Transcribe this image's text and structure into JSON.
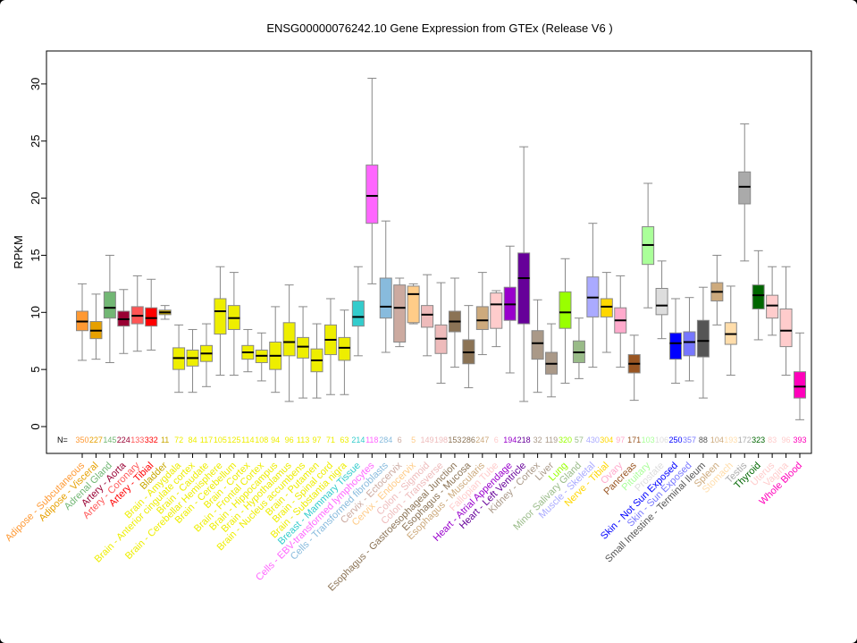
{
  "chart_data": {
    "type": "boxplot",
    "title": "ENSG00000076242.10 Gene Expression from GTEx (Release  V6 )",
    "ylabel": "RPKM",
    "ylim": [
      -1,
      33
    ],
    "yticks": [
      0,
      5,
      10,
      15,
      20,
      25,
      30
    ],
    "n_label": "N=",
    "series": [
      {
        "name": "Adipose - Subcutaneous",
        "n": "350",
        "color": "#FF9933",
        "stats": [
          5.8,
          8.4,
          9.2,
          10.1,
          12.5
        ]
      },
      {
        "name": "Adipose - Visceral",
        "n": "227",
        "color": "#E6A000",
        "stats": [
          5.9,
          7.7,
          8.4,
          9.2,
          11.6
        ]
      },
      {
        "name": "Adrenal Gland",
        "n": "145",
        "color": "#72B774",
        "stats": [
          5.6,
          9.5,
          10.4,
          11.8,
          15.0
        ]
      },
      {
        "name": "Artery - Aorta",
        "n": "224",
        "color": "#990033",
        "stats": [
          6.4,
          8.8,
          9.4,
          10.1,
          12.0
        ]
      },
      {
        "name": "Artery - Coronary",
        "n": "133",
        "color": "#FF5555",
        "stats": [
          6.6,
          9.0,
          9.7,
          10.5,
          13.2
        ]
      },
      {
        "name": "Artery - Tibial",
        "n": "332",
        "color": "#FF0000",
        "stats": [
          6.7,
          8.8,
          9.5,
          10.4,
          12.9
        ]
      },
      {
        "name": "Bladder",
        "n": "11",
        "color": "#C8A800",
        "stats": [
          9.4,
          9.8,
          10.0,
          10.2,
          10.6
        ]
      },
      {
        "name": "Brain - Amygdala",
        "n": "72",
        "color": "#EEEE00",
        "stats": [
          3.0,
          5.0,
          6.0,
          6.9,
          8.9
        ]
      },
      {
        "name": "Brain - Anterior cingulate cortex",
        "n": "84",
        "color": "#EEEE00",
        "stats": [
          3.0,
          5.3,
          6.0,
          6.7,
          8.5
        ]
      },
      {
        "name": "Brain - Caudate",
        "n": "117",
        "color": "#EEEE00",
        "stats": [
          3.5,
          5.7,
          6.4,
          7.1,
          9.0
        ]
      },
      {
        "name": "Brain - Cerebellar Hemisphere",
        "n": "105",
        "color": "#EEEE00",
        "stats": [
          4.5,
          8.1,
          10.1,
          11.2,
          14.0
        ]
      },
      {
        "name": "Brain - Cerebellum",
        "n": "125",
        "color": "#EEEE00",
        "stats": [
          4.5,
          8.5,
          9.5,
          10.6,
          13.5
        ]
      },
      {
        "name": "Brain - Cortex",
        "n": "114",
        "color": "#EEEE00",
        "stats": [
          4.8,
          5.9,
          6.5,
          7.1,
          8.5
        ]
      },
      {
        "name": "Brain - Frontal Cortex",
        "n": "108",
        "color": "#EEEE00",
        "stats": [
          4.0,
          5.6,
          6.2,
          6.7,
          8.2
        ]
      },
      {
        "name": "Brain - Hippocampus",
        "n": "94",
        "color": "#EEEE00",
        "stats": [
          3.0,
          5.0,
          6.2,
          7.4,
          10.5
        ]
      },
      {
        "name": "Brain - Hypothalamus",
        "n": "96",
        "color": "#EEEE00",
        "stats": [
          2.2,
          6.2,
          7.4,
          9.1,
          12.4
        ]
      },
      {
        "name": "Brain - Nucleus accumbens",
        "n": "113",
        "color": "#EEEE00",
        "stats": [
          2.5,
          6.0,
          7.0,
          7.8,
          10.5
        ]
      },
      {
        "name": "Brain - Putamen",
        "n": "97",
        "color": "#EEEE00",
        "stats": [
          2.5,
          4.8,
          5.8,
          6.8,
          9.0
        ]
      },
      {
        "name": "Brain - Spinal cord",
        "n": "71",
        "color": "#EEEE00",
        "stats": [
          2.8,
          6.3,
          7.6,
          8.9,
          11.2
        ]
      },
      {
        "name": "Brain - Substantia nigra",
        "n": "63",
        "color": "#EEEE00",
        "stats": [
          2.8,
          5.8,
          6.9,
          7.8,
          10.2
        ]
      },
      {
        "name": "Breast - Mammary Tissue",
        "n": "214",
        "color": "#33CCCC",
        "stats": [
          6.2,
          8.8,
          9.6,
          11.0,
          14.0
        ]
      },
      {
        "name": "Cells - EBV-transformed lymphocytes",
        "n": "118",
        "color": "#FF66FF",
        "stats": [
          12.5,
          17.8,
          20.2,
          22.9,
          30.5
        ]
      },
      {
        "name": "Cells - Transformed fibroblasts",
        "n": "284",
        "color": "#88BBDD",
        "stats": [
          6.5,
          9.5,
          10.5,
          13.0,
          18.0
        ]
      },
      {
        "name": "Cervix - Ectocervix",
        "n": "6",
        "color": "#CCAAA0",
        "stats": [
          7.0,
          7.4,
          10.4,
          12.4,
          13.0
        ]
      },
      {
        "name": "Cervix - Endocervix",
        "n": "5",
        "color": "#FFCC88",
        "stats": [
          9.0,
          9.1,
          11.6,
          12.3,
          12.5
        ]
      },
      {
        "name": "Colon - Sigmoid",
        "n": "149",
        "color": "#EEBBBB",
        "stats": [
          6.2,
          8.7,
          9.8,
          10.6,
          13.3
        ]
      },
      {
        "name": "Colon - Transverse",
        "n": "198",
        "color": "#EEBBBB",
        "stats": [
          3.8,
          6.4,
          7.7,
          8.9,
          12.6
        ]
      },
      {
        "name": "Esophagus - Gastroesophageal Junction",
        "n": "153",
        "color": "#8B7355",
        "stats": [
          5.2,
          8.3,
          9.2,
          10.1,
          13.0
        ]
      },
      {
        "name": "Esophagus - Mucosa",
        "n": "286",
        "color": "#8B7355",
        "stats": [
          3.4,
          5.5,
          6.5,
          7.6,
          10.6
        ]
      },
      {
        "name": "Esophagus - Muscularis",
        "n": "247",
        "color": "#CDAA7D",
        "stats": [
          6.3,
          8.5,
          9.3,
          10.5,
          13.5
        ]
      },
      {
        "name": "Fallopian Tube",
        "n": "6",
        "color": "#FFCCCC",
        "stats": [
          7.0,
          8.6,
          10.7,
          11.7,
          11.9
        ]
      },
      {
        "name": "Heart - Atrial Appendage",
        "n": "194",
        "color": "#9900CC",
        "stats": [
          4.7,
          9.3,
          10.7,
          12.2,
          15.8
        ]
      },
      {
        "name": "Heart - Left Ventricle",
        "n": "218",
        "color": "#660099",
        "stats": [
          2.2,
          9.0,
          13.0,
          15.2,
          24.5
        ]
      },
      {
        "name": "Kidney - Cortex",
        "n": "32",
        "color": "#AA9988",
        "stats": [
          3.0,
          5.9,
          7.3,
          8.4,
          11.1
        ]
      },
      {
        "name": "Liver",
        "n": "119",
        "color": "#AA9988",
        "stats": [
          2.6,
          4.6,
          5.5,
          6.5,
          9.0
        ]
      },
      {
        "name": "Lung",
        "n": "320",
        "color": "#99FF00",
        "stats": [
          3.8,
          8.6,
          10.0,
          11.8,
          14.7
        ]
      },
      {
        "name": "Minor Salivary Gland",
        "n": "57",
        "color": "#99BB88",
        "stats": [
          4.2,
          5.6,
          6.5,
          7.5,
          9.5
        ]
      },
      {
        "name": "Muscle - Skeletal",
        "n": "430",
        "color": "#AAAAFF",
        "stats": [
          5.2,
          9.6,
          11.3,
          13.1,
          17.8
        ]
      },
      {
        "name": "Nerve - Tibial",
        "n": "304",
        "color": "#FFD700",
        "stats": [
          6.5,
          9.6,
          10.5,
          11.2,
          13.5
        ]
      },
      {
        "name": "Ovary",
        "n": "97",
        "color": "#FFAACC",
        "stats": [
          5.2,
          8.2,
          9.3,
          10.4,
          13.2
        ]
      },
      {
        "name": "Pancreas",
        "n": "171",
        "color": "#995522",
        "stats": [
          2.3,
          4.7,
          5.5,
          6.3,
          8.0
        ]
      },
      {
        "name": "Pituitary",
        "n": "103",
        "color": "#AAFF99",
        "stats": [
          10.4,
          14.2,
          15.9,
          17.5,
          21.3
        ]
      },
      {
        "name": "Prostate",
        "n": "106",
        "color": "#DDDDDD",
        "stats": [
          7.7,
          9.8,
          10.6,
          12.1,
          14.5
        ]
      },
      {
        "name": "Skin - Not Sun Exposed",
        "n": "250",
        "color": "#0000FF",
        "stats": [
          3.8,
          5.9,
          7.3,
          8.2,
          11.2
        ]
      },
      {
        "name": "Skin - Sun Exposed",
        "n": "357",
        "color": "#7777FF",
        "stats": [
          4.0,
          6.2,
          7.4,
          8.3,
          11.3
        ]
      },
      {
        "name": "Small Intestine - Terminal Ileum",
        "n": "88",
        "color": "#555555",
        "stats": [
          2.5,
          6.1,
          7.5,
          9.3,
          12.2
        ]
      },
      {
        "name": "Spleen",
        "n": "104",
        "color": "#CDAA7D",
        "stats": [
          8.9,
          11.0,
          11.8,
          12.6,
          15.0
        ]
      },
      {
        "name": "Stomach",
        "n": "193",
        "color": "#FFDDAA",
        "stats": [
          4.5,
          7.2,
          8.1,
          9.1,
          12.3
        ]
      },
      {
        "name": "Testis",
        "n": "172",
        "color": "#AAAAAA",
        "stats": [
          14.5,
          19.5,
          21.0,
          22.3,
          26.5
        ]
      },
      {
        "name": "Thyroid",
        "n": "323",
        "color": "#006600",
        "stats": [
          7.6,
          10.3,
          11.5,
          12.4,
          15.4
        ]
      },
      {
        "name": "Uterus",
        "n": "83",
        "color": "#FFCCCC",
        "stats": [
          8.0,
          9.5,
          10.6,
          11.5,
          14.0
        ]
      },
      {
        "name": "Vagina",
        "n": "96",
        "color": "#FFCCCC",
        "stats": [
          4.5,
          7.0,
          8.4,
          10.3,
          14.0
        ]
      },
      {
        "name": "Whole Blood",
        "n": "393",
        "color": "#FF00BB",
        "stats": [
          0.6,
          2.5,
          3.5,
          4.8,
          8.2
        ]
      }
    ]
  }
}
